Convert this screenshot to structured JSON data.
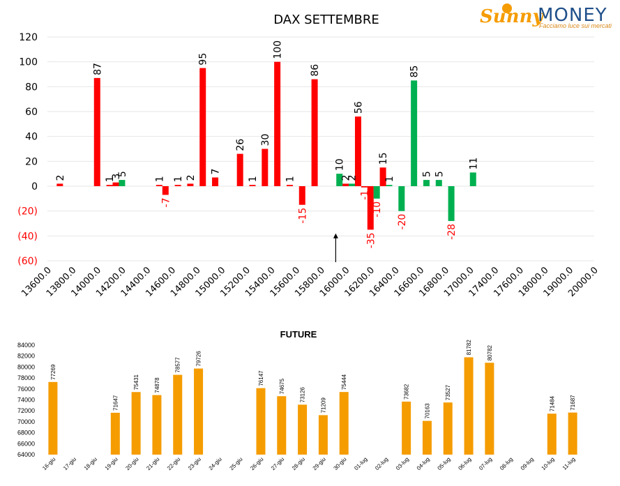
{
  "brand": {
    "logo_left": "Sunny",
    "logo_right": "MONEY",
    "tagline": "Facciamo luce sui mercati"
  },
  "colors": {
    "red": "#ff0000",
    "green": "#00b050",
    "orange": "#f59c00",
    "grid": "#e6e6e6",
    "negative_label": "#ff0000",
    "axis_text": "#000000"
  },
  "chart_data": [
    {
      "type": "bar",
      "title": "DAX SETTEMBRE",
      "ylim": [
        -60,
        120
      ],
      "yticks": [
        "120",
        "100",
        "80",
        "60",
        "40",
        "20",
        "0",
        "(20)",
        "(40)",
        "(60)"
      ],
      "ytick_values": [
        120,
        100,
        80,
        60,
        40,
        20,
        0,
        -20,
        -40,
        -60
      ],
      "grid": true,
      "legend": "none",
      "categories": [
        "13600.0",
        "13800.0",
        "14000.0",
        "14200.0",
        "14400.0",
        "14600.0",
        "14800.0",
        "15000.0",
        "15200.0",
        "15400.0",
        "15600.0",
        "15800.0",
        "16000.0",
        "16200.0",
        "16400.0",
        "16600.0",
        "16800.0",
        "17000.0",
        "17400.0",
        "17600.0",
        "18000.0",
        "19000.0",
        "20000.0"
      ],
      "bars": [
        {
          "x": 13700,
          "value": 2,
          "label": "2",
          "color": "red"
        },
        {
          "x": 14000,
          "value": 87,
          "label": "87",
          "color": "red"
        },
        {
          "x": 14100,
          "value": 1,
          "label": "1",
          "color": "red"
        },
        {
          "x": 14150,
          "value": 3,
          "label": "3",
          "color": "red"
        },
        {
          "x": 14200,
          "value": 5,
          "label": "5",
          "color": "green"
        },
        {
          "x": 14500,
          "value": 1,
          "label": "1",
          "color": "red"
        },
        {
          "x": 14550,
          "value": -7,
          "label": "-7",
          "color": "red"
        },
        {
          "x": 14650,
          "value": 1,
          "label": "1",
          "color": "red"
        },
        {
          "x": 14750,
          "value": 2,
          "label": "2",
          "color": "red"
        },
        {
          "x": 14850,
          "value": 95,
          "label": "95",
          "color": "red"
        },
        {
          "x": 14950,
          "value": 7,
          "label": "7",
          "color": "red"
        },
        {
          "x": 15150,
          "value": 26,
          "label": "26",
          "color": "red"
        },
        {
          "x": 15250,
          "value": 1,
          "label": "1",
          "color": "red"
        },
        {
          "x": 15350,
          "value": 30,
          "label": "30",
          "color": "red"
        },
        {
          "x": 15450,
          "value": 100,
          "label": "100",
          "color": "red"
        },
        {
          "x": 15550,
          "value": 1,
          "label": "1",
          "color": "red"
        },
        {
          "x": 15650,
          "value": -15,
          "label": "-15",
          "color": "red"
        },
        {
          "x": 15750,
          "value": 86,
          "label": "86",
          "color": "red"
        },
        {
          "x": 15950,
          "value": 10,
          "label": "10",
          "color": "green"
        },
        {
          "x": 16000,
          "value": 2,
          "label": "2",
          "color": "red"
        },
        {
          "x": 16050,
          "value": 2,
          "label": "2",
          "color": "green"
        },
        {
          "x": 16100,
          "value": 56,
          "label": "56",
          "color": "red"
        },
        {
          "x": 16150,
          "value": -1,
          "label": "-1",
          "color": "red"
        },
        {
          "x": 16200,
          "value": -35,
          "label": "-35",
          "color": "red"
        },
        {
          "x": 16250,
          "value": -10,
          "label": "-10",
          "color": "green"
        },
        {
          "x": 16300,
          "value": 15,
          "label": "15",
          "color": "red"
        },
        {
          "x": 16350,
          "value": 1,
          "label": "1",
          "color": "green"
        },
        {
          "x": 16450,
          "value": -20,
          "label": "-20",
          "color": "green"
        },
        {
          "x": 16550,
          "value": 85,
          "label": "85",
          "color": "green"
        },
        {
          "x": 16650,
          "value": 5,
          "label": "5",
          "color": "green"
        },
        {
          "x": 16750,
          "value": 5,
          "label": "5",
          "color": "green"
        },
        {
          "x": 16850,
          "value": -28,
          "label": "-28",
          "color": "green"
        },
        {
          "x": 17050,
          "value": 11,
          "label": "11",
          "color": "green"
        }
      ],
      "annotation": {
        "type": "arrow-up",
        "x": 15920,
        "from": -60,
        "to": -38
      }
    },
    {
      "type": "bar",
      "title": "FUTURE",
      "ylim": [
        64000,
        84000
      ],
      "yticks": [
        "84000",
        "82000",
        "80000",
        "78000",
        "76000",
        "74000",
        "72000",
        "70000",
        "68000",
        "66000",
        "64000"
      ],
      "ytick_values": [
        84000,
        82000,
        80000,
        78000,
        76000,
        74000,
        72000,
        70000,
        68000,
        66000,
        64000
      ],
      "grid": false,
      "legend": "none",
      "categories": [
        "16-giu",
        "17-giu",
        "18-giu",
        "19-giu",
        "20-giu",
        "21-giu",
        "22-giu",
        "23-giu",
        "24-giu",
        "25-giu",
        "26-giu",
        "27-giu",
        "28-giu",
        "29-giu",
        "30-giu",
        "01-lug",
        "02-lug",
        "03-lug",
        "04-lug",
        "05-lug",
        "06-lug",
        "07-lug",
        "08-lug",
        "09-lug",
        "10-lug",
        "11-lug"
      ],
      "values": [
        77269,
        null,
        null,
        71647,
        75431,
        74878,
        78577,
        79726,
        null,
        null,
        76147,
        74675,
        73126,
        71209,
        75444,
        null,
        null,
        73682,
        70163,
        73527,
        81782,
        80782,
        null,
        null,
        71484,
        71687
      ],
      "labels": [
        "77269",
        "",
        "",
        "71647",
        "75431",
        "74878",
        "78577",
        "79726",
        "",
        "",
        "76147",
        "74675",
        "73126",
        "71209",
        "75444",
        "",
        "",
        "73682",
        "70163",
        "73527",
        "81782",
        "80782",
        "",
        "",
        "71484",
        "71687"
      ],
      "color": "orange"
    }
  ]
}
